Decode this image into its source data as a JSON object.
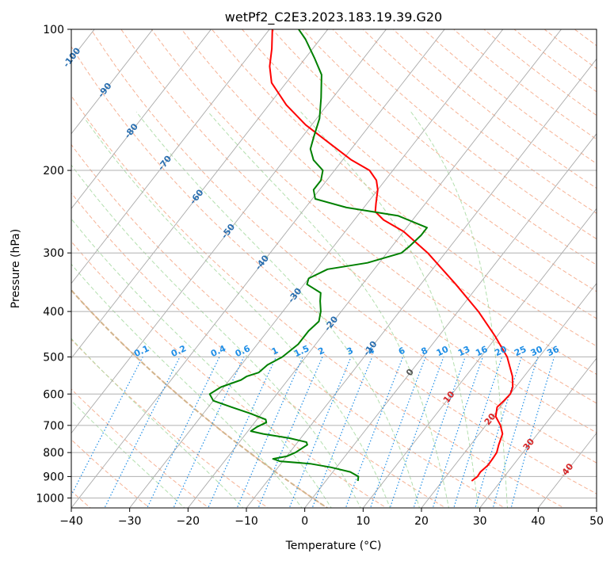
{
  "chart_data": {
    "type": "skew-t",
    "title": "wetPf2_C2E3.2023.183.19.39.G20",
    "xlabel": "Temperature (°C)",
    "ylabel": "Pressure (hPa)",
    "xlim": [
      -40,
      50
    ],
    "ylim": [
      1050,
      100
    ],
    "y_scale": "log",
    "grid": true,
    "x_ticks": [
      -40,
      -30,
      -20,
      -10,
      0,
      10,
      20,
      30,
      40,
      50
    ],
    "x_tick_labels": [
      "−40",
      "−30",
      "−20",
      "−10",
      "0",
      "10",
      "20",
      "30",
      "40",
      "50"
    ],
    "y_ticks": [
      100,
      200,
      300,
      400,
      500,
      600,
      700,
      800,
      900,
      1000
    ],
    "y_tick_labels": [
      "100",
      "200",
      "300",
      "400",
      "500",
      "600",
      "700",
      "800",
      "900",
      "1000"
    ],
    "isotherm_labels": {
      "color_cold": "#2a6fb0",
      "color_zero": "#555555",
      "color_warm": "#d62728",
      "items": [
        {
          "text": "-100",
          "t": -100,
          "p": 115
        },
        {
          "text": "-90",
          "t": -90,
          "p": 135
        },
        {
          "text": "-80",
          "t": -80,
          "p": 165
        },
        {
          "text": "-70",
          "t": -70,
          "p": 193
        },
        {
          "text": "-60",
          "t": -60,
          "p": 228
        },
        {
          "text": "-50",
          "t": -50,
          "p": 270
        },
        {
          "text": "-40",
          "t": -40,
          "p": 315
        },
        {
          "text": "-30",
          "t": -30,
          "p": 370
        },
        {
          "text": "-20",
          "t": -20,
          "p": 425
        },
        {
          "text": "-10",
          "t": -10,
          "p": 480
        },
        {
          "text": "0",
          "t": 0,
          "p": 540
        },
        {
          "text": "10",
          "t": 10,
          "p": 610
        },
        {
          "text": "20",
          "t": 20,
          "p": 680
        },
        {
          "text": "30",
          "t": 30,
          "p": 770
        },
        {
          "text": "40",
          "t": 40,
          "p": 870
        }
      ]
    },
    "mixing_ratio": {
      "color": "#1f8ee6",
      "label_pressure": 500,
      "values": [
        0.1,
        0.2,
        0.4,
        0.6,
        1,
        1.5,
        2,
        3,
        4,
        6,
        8,
        10,
        13,
        16,
        20,
        25,
        30,
        36
      ],
      "labels": [
        "0.1",
        "0.2",
        "0.4",
        "0.6",
        "1",
        "1.5",
        "2",
        "3",
        "4",
        "6",
        "8",
        "10",
        "13",
        "16",
        "20",
        "25",
        "30",
        "36"
      ]
    },
    "series": [
      {
        "color": "#ff0000",
        "points": [
          {
            "p": 920,
            "t": 25.0
          },
          {
            "p": 900,
            "t": 25.4
          },
          {
            "p": 880,
            "t": 25.3
          },
          {
            "p": 850,
            "t": 25.7
          },
          {
            "p": 820,
            "t": 25.6
          },
          {
            "p": 800,
            "t": 25.5
          },
          {
            "p": 770,
            "t": 24.8
          },
          {
            "p": 730,
            "t": 24.0
          },
          {
            "p": 700,
            "t": 22.5
          },
          {
            "p": 670,
            "t": 20.5
          },
          {
            "p": 640,
            "t": 19.5
          },
          {
            "p": 620,
            "t": 19.8
          },
          {
            "p": 600,
            "t": 20.0
          },
          {
            "p": 580,
            "t": 19.5
          },
          {
            "p": 550,
            "t": 18.0
          },
          {
            "p": 500,
            "t": 14.5
          },
          {
            "p": 450,
            "t": 9.5
          },
          {
            "p": 400,
            "t": 3.5
          },
          {
            "p": 350,
            "t": -4.0
          },
          {
            "p": 300,
            "t": -13.0
          },
          {
            "p": 270,
            "t": -20.0
          },
          {
            "p": 255,
            "t": -25.0
          },
          {
            "p": 245,
            "t": -27.5
          },
          {
            "p": 235,
            "t": -28.5
          },
          {
            "p": 220,
            "t": -30.0
          },
          {
            "p": 210,
            "t": -31.5
          },
          {
            "p": 200,
            "t": -34.0
          },
          {
            "p": 190,
            "t": -38.5
          },
          {
            "p": 175,
            "t": -44.5
          },
          {
            "p": 160,
            "t": -51.0
          },
          {
            "p": 145,
            "t": -57.0
          },
          {
            "p": 130,
            "t": -62.5
          },
          {
            "p": 120,
            "t": -65.0
          },
          {
            "p": 110,
            "t": -67.0
          },
          {
            "p": 100,
            "t": -69.5
          }
        ]
      },
      {
        "color": "#008000",
        "points": [
          {
            "p": 920,
            "t": 5.5
          },
          {
            "p": 900,
            "t": 5.0
          },
          {
            "p": 880,
            "t": 3.0
          },
          {
            "p": 860,
            "t": -1.0
          },
          {
            "p": 845,
            "t": -5.0
          },
          {
            "p": 835,
            "t": -10.5
          },
          {
            "p": 825,
            "t": -12.0
          },
          {
            "p": 815,
            "t": -10.0
          },
          {
            "p": 800,
            "t": -9.0
          },
          {
            "p": 785,
            "t": -8.5
          },
          {
            "p": 770,
            "t": -8.0
          },
          {
            "p": 760,
            "t": -8.5
          },
          {
            "p": 745,
            "t": -12.0
          },
          {
            "p": 730,
            "t": -17.0
          },
          {
            "p": 720,
            "t": -19.5
          },
          {
            "p": 705,
            "t": -19.0
          },
          {
            "p": 690,
            "t": -18.0
          },
          {
            "p": 680,
            "t": -18.5
          },
          {
            "p": 660,
            "t": -22.0
          },
          {
            "p": 640,
            "t": -26.0
          },
          {
            "p": 620,
            "t": -30.0
          },
          {
            "p": 600,
            "t": -31.5
          },
          {
            "p": 580,
            "t": -30.5
          },
          {
            "p": 560,
            "t": -28.0
          },
          {
            "p": 550,
            "t": -27.5
          },
          {
            "p": 540,
            "t": -26.0
          },
          {
            "p": 520,
            "t": -25.5
          },
          {
            "p": 500,
            "t": -24.0
          },
          {
            "p": 470,
            "t": -23.0
          },
          {
            "p": 440,
            "t": -23.0
          },
          {
            "p": 420,
            "t": -22.5
          },
          {
            "p": 400,
            "t": -23.5
          },
          {
            "p": 380,
            "t": -25.0
          },
          {
            "p": 365,
            "t": -26.0
          },
          {
            "p": 350,
            "t": -29.5
          },
          {
            "p": 340,
            "t": -30.0
          },
          {
            "p": 325,
            "t": -28.0
          },
          {
            "p": 315,
            "t": -22.0
          },
          {
            "p": 300,
            "t": -17.5
          },
          {
            "p": 290,
            "t": -17.0
          },
          {
            "p": 275,
            "t": -16.5
          },
          {
            "p": 265,
            "t": -16.5
          },
          {
            "p": 250,
            "t": -23.0
          },
          {
            "p": 240,
            "t": -33.0
          },
          {
            "p": 230,
            "t": -39.5
          },
          {
            "p": 220,
            "t": -41.0
          },
          {
            "p": 210,
            "t": -41.0
          },
          {
            "p": 200,
            "t": -42.0
          },
          {
            "p": 190,
            "t": -45.0
          },
          {
            "p": 180,
            "t": -47.0
          },
          {
            "p": 170,
            "t": -48.0
          },
          {
            "p": 155,
            "t": -49.5
          },
          {
            "p": 140,
            "t": -52.0
          },
          {
            "p": 125,
            "t": -55.0
          },
          {
            "p": 115,
            "t": -58.5
          },
          {
            "p": 105,
            "t": -62.5
          },
          {
            "p": 100,
            "t": -65.0
          }
        ]
      }
    ],
    "colors": {
      "grid": "#b0b0b0",
      "skewed_isotherms": "#aaaaaa",
      "dry_adiabats": "#f4a582",
      "moist_adiabats": "#a6d9a0",
      "mixing_ratio_lines": "#1f8ee6",
      "reference_curve": "#d2b48c"
    }
  }
}
